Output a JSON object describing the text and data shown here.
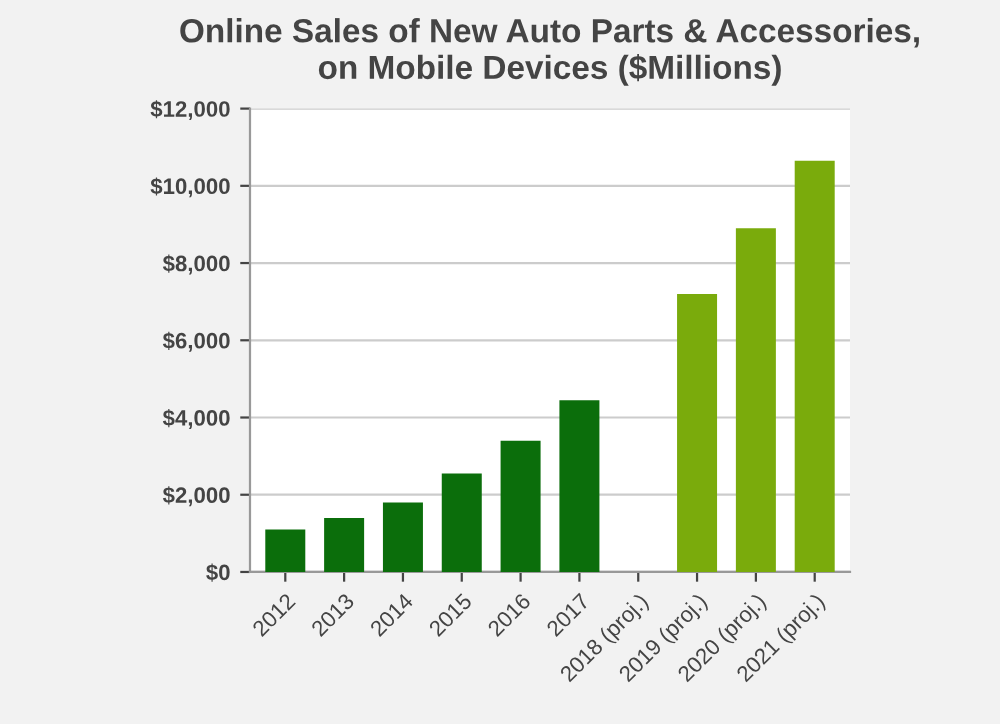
{
  "chart_data": {
    "type": "bar",
    "title": "Online Sales of New Auto Parts & Accessories,\non Mobile Devices ($Millions)",
    "categories": [
      "2012",
      "2013",
      "2014",
      "2015",
      "2016",
      "2017",
      "2018 (proj.)",
      "2019 (proj.)",
      "2020 (proj.)",
      "2021 (proj.)"
    ],
    "values": [
      1100,
      1400,
      1800,
      2550,
      3400,
      4450,
      null,
      7200,
      8900,
      10650
    ],
    "colors": [
      "#0b6e0b",
      "#0b6e0b",
      "#0b6e0b",
      "#0b6e0b",
      "#0b6e0b",
      "#0b6e0b",
      "#7aab0c",
      "#7aab0c",
      "#7aab0c",
      "#7aab0c"
    ],
    "ylim": [
      0,
      12000
    ],
    "yticks": [
      {
        "value": 0,
        "label": "$0"
      },
      {
        "value": 2000,
        "label": "$2,000"
      },
      {
        "value": 4000,
        "label": "$4,000"
      },
      {
        "value": 6000,
        "label": "$6,000"
      },
      {
        "value": 8000,
        "label": "$8,000"
      },
      {
        "value": 10000,
        "label": "$10,000"
      },
      {
        "value": 12000,
        "label": "$12,000"
      }
    ],
    "grid": "y"
  }
}
